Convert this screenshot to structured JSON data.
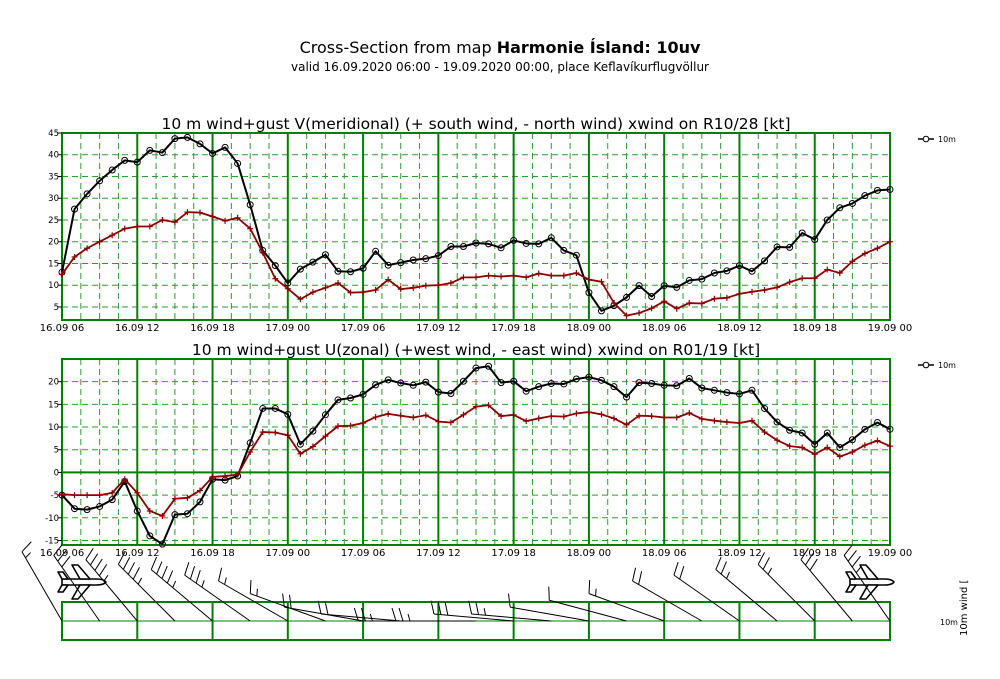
{
  "header": {
    "title_prefix": "Cross-Section from map",
    "title_model": "Harmonie Ísland: 10uv",
    "valid_text": "valid 16.09.2020 06:00 - 19.09.2020 00:00, place Keflavíkurflugvöllur"
  },
  "colors": {
    "frame": "#008000",
    "grid": "#2e9b2e",
    "mean": "#000000",
    "gust": "#8b0000"
  },
  "x_ticks": [
    "16.09 06",
    "16.09 12",
    "16.09 18",
    "17.09 00",
    "17.09 06",
    "17.09 12",
    "17.09 18",
    "18.09 00",
    "18.09 06",
    "18.09 12",
    "18.09 18",
    "19.09 00"
  ],
  "chart_data": [
    {
      "type": "line",
      "title": "10 m wind+gust V(meridional) (+ south wind, - north wind) xwind on R10/28 [kt]",
      "legend_label": "10m",
      "legend_position": "top-right",
      "x_unit": "hours since 16.09 06",
      "x_range": [
        0,
        66
      ],
      "ylim": [
        2,
        45
      ],
      "yticks": [
        5,
        10,
        15,
        20,
        25,
        30,
        35,
        40,
        45
      ],
      "series": [
        {
          "name": "10m",
          "marker": "circle",
          "values": [
            13,
            27.5,
            31,
            34,
            36.5,
            38.7,
            38.3,
            41,
            40.5,
            43.7,
            44,
            42.5,
            40.3,
            41.7,
            38,
            28.5,
            18,
            14.5,
            10.5,
            13.7,
            15.3,
            17,
            13.2,
            13.1,
            13.9,
            17.8,
            14.6,
            15.2,
            15.8,
            16.1,
            16.8,
            18.9,
            18.9,
            19.7,
            19.5,
            18.6,
            20.3,
            19.6,
            19.5,
            20.9,
            18,
            16.9,
            8.3,
            4.1,
            5.3,
            7.2,
            9.9,
            7.4,
            9.9,
            9.5,
            11.1,
            11.4,
            12.8,
            13.3,
            14.5,
            13.2,
            15.6,
            18.8,
            18.7,
            22,
            20.5,
            25,
            27.8,
            28.8,
            30.6,
            31.8,
            32
          ]
        },
        {
          "name": "gust",
          "marker": "plus",
          "values": [
            12.5,
            16.5,
            18.5,
            20,
            21.5,
            23,
            23.5,
            23.5,
            25,
            24.5,
            26.8,
            26.7,
            25.8,
            24.8,
            25.5,
            23,
            17.5,
            11.5,
            9.2,
            6.8,
            8.4,
            9.4,
            10.5,
            8.3,
            8.4,
            8.9,
            11.3,
            9.1,
            9.4,
            9.9,
            10,
            10.5,
            11.8,
            11.8,
            12.2,
            12,
            12.2,
            11.8,
            12.7,
            12.2,
            12.2,
            12.8,
            11.3,
            10.8,
            5.9,
            3,
            3.6,
            4.7,
            6.3,
            4.6,
            5.9,
            5.8,
            6.9,
            7.1,
            8,
            8.5,
            8.9,
            9.5,
            10.7,
            11.6,
            11.6,
            13.6,
            12.8,
            15.5,
            17.3,
            18.5,
            20
          ]
        }
      ]
    },
    {
      "type": "line",
      "title": "10 m wind+gust U(zonal) (+west wind, - east wind) xwind on R01/19 [kt]",
      "legend_label": "10m",
      "legend_position": "top-right",
      "x_unit": "hours since 16.09 06",
      "x_range": [
        0,
        66
      ],
      "ylim": [
        -16,
        25
      ],
      "yticks": [
        -15,
        -10,
        -5,
        0,
        5,
        10,
        15,
        20
      ],
      "series": [
        {
          "name": "10m",
          "marker": "circle",
          "values": [
            -5,
            -8,
            -8.2,
            -7.5,
            -6,
            -2,
            -8.5,
            -14,
            -15.8,
            -9.3,
            -9.1,
            -6.5,
            -1.5,
            -1.7,
            -0.8,
            6.5,
            14.1,
            14.1,
            12.8,
            6.2,
            9.1,
            12.7,
            16,
            16.4,
            17.2,
            19.3,
            20.4,
            19.7,
            19.2,
            19.9,
            17.7,
            17.4,
            20.1,
            23,
            23.4,
            19.8,
            20.1,
            17.9,
            18.9,
            19.6,
            19.5,
            20.6,
            21,
            20.3,
            18.9,
            16.6,
            19.8,
            19.6,
            19.2,
            19.1,
            20.7,
            18.6,
            18.1,
            17.6,
            17.3,
            18.1,
            14.1,
            11.1,
            9.3,
            8.7,
            6.2,
            8.7,
            5.5,
            7.2,
            9.5,
            11,
            9.5
          ]
        },
        {
          "name": "gust",
          "marker": "plus",
          "values": [
            -4.8,
            -5,
            -5,
            -5,
            -4.5,
            -1.5,
            -4.5,
            -8.5,
            -9.6,
            -5.8,
            -5.6,
            -4,
            -1,
            -0.8,
            -0.5,
            4.5,
            8.9,
            8.8,
            8.2,
            4.1,
            5.7,
            8,
            10.2,
            10.3,
            10.9,
            12.2,
            12.9,
            12.5,
            12.1,
            12.6,
            11.2,
            11,
            12.7,
            14.5,
            14.8,
            12.4,
            12.7,
            11.3,
            11.9,
            12.4,
            12.3,
            13,
            13.3,
            12.8,
            11.9,
            10.5,
            12.5,
            12.4,
            12.1,
            12.1,
            13.1,
            11.8,
            11.4,
            11.1,
            10.9,
            11.4,
            8.9,
            7.1,
            5.8,
            5.5,
            4,
            5.5,
            3.5,
            4.5,
            6,
            7,
            5.8
          ]
        }
      ]
    }
  ],
  "bottom_panel": {
    "axis_label": "10m",
    "rotated_label": "10m wind [",
    "barbs_hours": [
      0,
      3,
      6,
      9,
      12,
      15,
      18,
      21,
      24,
      27,
      30,
      33,
      36,
      39,
      42,
      45,
      48,
      51,
      54,
      57,
      60,
      63,
      66
    ],
    "barbs_direction_deg": [
      210,
      215,
      220,
      225,
      230,
      235,
      240,
      250,
      260,
      265,
      270,
      270,
      265,
      265,
      260,
      255,
      250,
      240,
      235,
      230,
      225,
      220,
      215
    ],
    "barbs_speed_kt": [
      15,
      30,
      45,
      45,
      45,
      35,
      15,
      15,
      20,
      20,
      25,
      25,
      30,
      25,
      10,
      10,
      15,
      20,
      20,
      25,
      25,
      30,
      35
    ]
  }
}
